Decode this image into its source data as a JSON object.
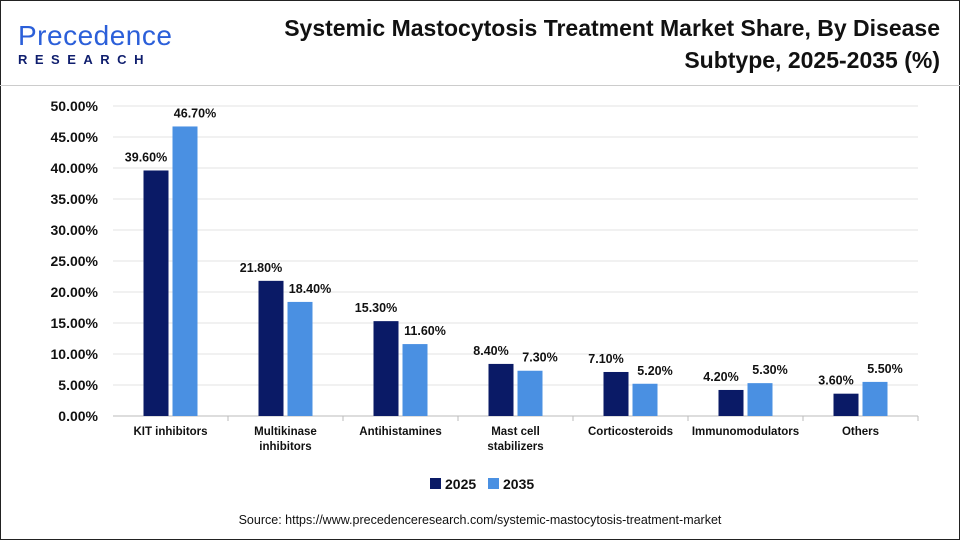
{
  "logo": {
    "line1": "Precedence",
    "line2": "RESEARCH"
  },
  "title": "Systemic Mastocytosis Treatment Market Share, By Disease Subtype, 2025-2035 (%)",
  "source": "Source: https://www.precedenceresearch.com/systemic-mastocytosis-treatment-market",
  "chart_data": {
    "type": "bar",
    "title": "Systemic Mastocytosis Treatment Market Share, By Disease Subtype, 2025-2035 (%)",
    "categories": [
      [
        "KIT inhibitors"
      ],
      [
        "Multikinase",
        "inhibitors"
      ],
      [
        "Antihistamines"
      ],
      [
        "Mast cell",
        "stabilizers"
      ],
      [
        "Corticosteroids"
      ],
      [
        "Immunomodulators"
      ],
      [
        "Others"
      ]
    ],
    "series": [
      {
        "name": "2025",
        "color": "#0a1a66",
        "values": [
          39.6,
          21.8,
          15.3,
          8.4,
          7.1,
          4.2,
          3.6
        ],
        "labels": [
          "39.60%",
          "21.80%",
          "15.30%",
          "8.40%",
          "7.10%",
          "4.20%",
          "3.60%"
        ]
      },
      {
        "name": "2035",
        "color": "#4a90e2",
        "values": [
          46.7,
          18.4,
          11.6,
          7.3,
          5.2,
          5.3,
          5.5
        ],
        "labels": [
          "46.70%",
          "18.40%",
          "11.60%",
          "7.30%",
          "5.20%",
          "5.30%",
          "5.50%"
        ]
      }
    ],
    "yticks": [
      "0.00%",
      "5.00%",
      "10.00%",
      "15.00%",
      "20.00%",
      "25.00%",
      "30.00%",
      "35.00%",
      "40.00%",
      "45.00%",
      "50.00%"
    ],
    "ylim": [
      0,
      50
    ],
    "grid": true,
    "legend": "bottom"
  }
}
